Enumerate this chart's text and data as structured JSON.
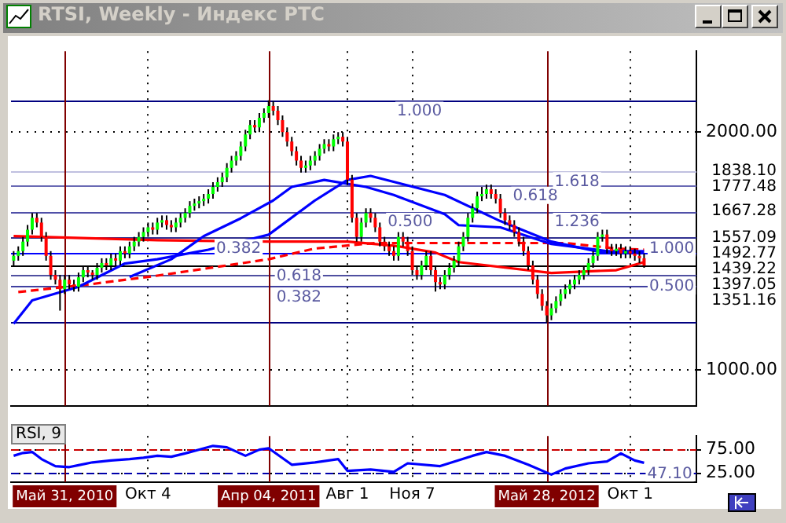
{
  "chart_data": [
    {
      "type": "candlestick",
      "title": "RTSI, Weekly - Индекс РТС",
      "x": [
        "2010-03-15",
        "2010-03-22",
        "2010-03-29",
        "2010-04-05",
        "2010-04-12",
        "2010-04-19",
        "2010-04-26",
        "2010-05-03",
        "2010-05-10",
        "2010-05-17",
        "2010-05-24",
        "2010-05-31",
        "2010-06-07",
        "2010-06-14",
        "2010-06-21",
        "2010-06-28",
        "2010-07-05",
        "2010-07-12",
        "2010-07-19",
        "2010-07-26",
        "2010-08-02",
        "2010-08-09",
        "2010-08-16",
        "2010-08-23",
        "2010-08-30",
        "2010-09-06",
        "2010-09-13",
        "2010-09-20",
        "2010-09-27",
        "2010-10-04",
        "2010-10-11",
        "2010-10-18",
        "2010-10-25",
        "2010-11-01",
        "2010-11-08",
        "2010-11-15",
        "2010-11-22",
        "2010-11-29",
        "2010-12-06",
        "2010-12-13",
        "2010-12-20",
        "2010-12-27",
        "2011-01-03",
        "2011-01-10",
        "2011-01-17",
        "2011-01-24",
        "2011-01-31",
        "2011-02-07",
        "2011-02-14",
        "2011-02-21",
        "2011-02-28",
        "2011-03-07",
        "2011-03-14",
        "2011-03-21",
        "2011-03-28",
        "2011-04-04",
        "2011-04-11",
        "2011-04-18",
        "2011-04-25",
        "2011-05-02",
        "2011-05-09",
        "2011-05-16",
        "2011-05-23",
        "2011-05-30",
        "2011-06-06",
        "2011-06-13",
        "2011-06-20",
        "2011-06-27",
        "2011-07-04",
        "2011-07-11",
        "2011-07-18",
        "2011-07-25",
        "2011-08-01",
        "2011-08-08",
        "2011-08-15",
        "2011-08-22",
        "2011-08-29",
        "2011-09-05",
        "2011-09-12",
        "2011-09-19",
        "2011-09-26",
        "2011-10-03",
        "2011-10-10",
        "2011-10-17",
        "2011-10-24",
        "2011-10-31",
        "2011-11-07",
        "2011-11-14",
        "2011-11-21",
        "2011-11-28",
        "2011-12-05",
        "2011-12-12",
        "2011-12-19",
        "2011-12-26",
        "2012-01-02",
        "2012-01-09",
        "2012-01-16",
        "2012-01-23",
        "2012-01-30",
        "2012-02-06",
        "2012-02-13",
        "2012-02-20",
        "2012-02-27",
        "2012-03-05",
        "2012-03-12",
        "2012-03-19",
        "2012-03-26",
        "2012-04-02",
        "2012-04-09",
        "2012-04-16",
        "2012-04-23",
        "2012-04-30",
        "2012-05-07",
        "2012-05-14",
        "2012-05-21",
        "2012-05-28",
        "2012-06-04",
        "2012-06-11",
        "2012-06-18",
        "2012-06-25",
        "2012-07-02",
        "2012-07-09",
        "2012-07-16",
        "2012-07-23",
        "2012-07-30",
        "2012-08-06",
        "2012-08-13",
        "2012-08-20",
        "2012-08-27",
        "2012-09-03",
        "2012-09-10",
        "2012-09-17",
        "2012-09-24",
        "2012-10-01",
        "2012-10-08",
        "2012-10-15",
        "2012-10-22"
      ],
      "ohlc": [
        [
          1460,
          1500,
          1440,
          1480
        ],
        [
          1480,
          1520,
          1460,
          1500
        ],
        [
          1500,
          1560,
          1480,
          1540
        ],
        [
          1540,
          1610,
          1520,
          1590
        ],
        [
          1590,
          1660,
          1570,
          1640
        ],
        [
          1640,
          1660,
          1600,
          1620
        ],
        [
          1620,
          1640,
          1540,
          1560
        ],
        [
          1560,
          1580,
          1460,
          1480
        ],
        [
          1480,
          1500,
          1380,
          1400
        ],
        [
          1400,
          1420,
          1360,
          1380
        ],
        [
          1380,
          1400,
          1250,
          1340
        ],
        [
          1340,
          1400,
          1320,
          1380
        ],
        [
          1380,
          1400,
          1340,
          1360
        ],
        [
          1360,
          1380,
          1330,
          1350
        ],
        [
          1350,
          1410,
          1330,
          1390
        ],
        [
          1390,
          1440,
          1370,
          1420
        ],
        [
          1420,
          1440,
          1390,
          1410
        ],
        [
          1410,
          1420,
          1380,
          1400
        ],
        [
          1400,
          1450,
          1380,
          1430
        ],
        [
          1430,
          1470,
          1410,
          1450
        ],
        [
          1450,
          1470,
          1420,
          1440
        ],
        [
          1440,
          1490,
          1420,
          1470
        ],
        [
          1470,
          1490,
          1440,
          1460
        ],
        [
          1460,
          1520,
          1440,
          1500
        ],
        [
          1500,
          1520,
          1470,
          1490
        ],
        [
          1490,
          1540,
          1470,
          1520
        ],
        [
          1520,
          1560,
          1500,
          1540
        ],
        [
          1540,
          1580,
          1520,
          1560
        ],
        [
          1560,
          1600,
          1540,
          1580
        ],
        [
          1580,
          1620,
          1560,
          1600
        ],
        [
          1600,
          1620,
          1570,
          1590
        ],
        [
          1590,
          1640,
          1570,
          1620
        ],
        [
          1620,
          1650,
          1600,
          1630
        ],
        [
          1630,
          1650,
          1590,
          1610
        ],
        [
          1610,
          1630,
          1580,
          1600
        ],
        [
          1600,
          1640,
          1580,
          1620
        ],
        [
          1620,
          1660,
          1600,
          1640
        ],
        [
          1640,
          1680,
          1620,
          1660
        ],
        [
          1660,
          1710,
          1640,
          1690
        ],
        [
          1690,
          1720,
          1670,
          1700
        ],
        [
          1700,
          1730,
          1680,
          1710
        ],
        [
          1710,
          1740,
          1690,
          1720
        ],
        [
          1720,
          1760,
          1700,
          1740
        ],
        [
          1740,
          1790,
          1720,
          1770
        ],
        [
          1770,
          1810,
          1750,
          1790
        ],
        [
          1790,
          1830,
          1770,
          1810
        ],
        [
          1810,
          1870,
          1790,
          1850
        ],
        [
          1850,
          1900,
          1830,
          1880
        ],
        [
          1880,
          1920,
          1860,
          1900
        ],
        [
          1900,
          1960,
          1880,
          1940
        ],
        [
          1940,
          2010,
          1920,
          1990
        ],
        [
          1990,
          2050,
          1970,
          2030
        ],
        [
          2030,
          2050,
          2000,
          2020
        ],
        [
          2020,
          2080,
          2000,
          2060
        ],
        [
          2060,
          2100,
          2040,
          2080
        ],
        [
          2080,
          2134,
          2060,
          2110
        ],
        [
          2110,
          2130,
          2070,
          2090
        ],
        [
          2090,
          2110,
          2030,
          2050
        ],
        [
          2050,
          2070,
          1980,
          2000
        ],
        [
          2000,
          2020,
          1940,
          1960
        ],
        [
          1960,
          1980,
          1900,
          1920
        ],
        [
          1920,
          1940,
          1860,
          1880
        ],
        [
          1880,
          1900,
          1830,
          1850
        ],
        [
          1850,
          1880,
          1830,
          1860
        ],
        [
          1860,
          1900,
          1840,
          1880
        ],
        [
          1880,
          1920,
          1860,
          1900
        ],
        [
          1900,
          1950,
          1880,
          1930
        ],
        [
          1930,
          1970,
          1910,
          1950
        ],
        [
          1950,
          1970,
          1920,
          1940
        ],
        [
          1940,
          1990,
          1920,
          1970
        ],
        [
          1970,
          2000,
          1950,
          1980
        ],
        [
          1980,
          2000,
          1940,
          1960
        ],
        [
          1960,
          1980,
          1780,
          1800
        ],
        [
          1800,
          1820,
          1620,
          1640
        ],
        [
          1640,
          1660,
          1540,
          1560
        ],
        [
          1560,
          1640,
          1540,
          1620
        ],
        [
          1620,
          1680,
          1600,
          1660
        ],
        [
          1660,
          1680,
          1620,
          1640
        ],
        [
          1640,
          1660,
          1580,
          1600
        ],
        [
          1600,
          1620,
          1520,
          1540
        ],
        [
          1540,
          1560,
          1500,
          1520
        ],
        [
          1520,
          1540,
          1480,
          1500
        ],
        [
          1500,
          1520,
          1460,
          1480
        ],
        [
          1480,
          1580,
          1460,
          1560
        ],
        [
          1560,
          1580,
          1520,
          1540
        ],
        [
          1540,
          1560,
          1480,
          1500
        ],
        [
          1500,
          1520,
          1400,
          1420
        ],
        [
          1420,
          1440,
          1380,
          1400
        ],
        [
          1400,
          1460,
          1380,
          1440
        ],
        [
          1440,
          1500,
          1420,
          1480
        ],
        [
          1480,
          1500,
          1400,
          1420
        ],
        [
          1420,
          1440,
          1330,
          1370
        ],
        [
          1370,
          1390,
          1340,
          1360
        ],
        [
          1360,
          1420,
          1340,
          1400
        ],
        [
          1400,
          1450,
          1380,
          1430
        ],
        [
          1430,
          1480,
          1410,
          1460
        ],
        [
          1460,
          1540,
          1440,
          1520
        ],
        [
          1520,
          1580,
          1500,
          1560
        ],
        [
          1560,
          1660,
          1540,
          1640
        ],
        [
          1640,
          1700,
          1620,
          1680
        ],
        [
          1680,
          1750,
          1660,
          1730
        ],
        [
          1730,
          1770,
          1710,
          1740
        ],
        [
          1740,
          1780,
          1720,
          1760
        ],
        [
          1760,
          1780,
          1720,
          1740
        ],
        [
          1740,
          1760,
          1700,
          1720
        ],
        [
          1720,
          1740,
          1640,
          1660
        ],
        [
          1660,
          1680,
          1610,
          1630
        ],
        [
          1630,
          1650,
          1590,
          1610
        ],
        [
          1610,
          1630,
          1560,
          1580
        ],
        [
          1580,
          1600,
          1520,
          1540
        ],
        [
          1540,
          1560,
          1480,
          1500
        ],
        [
          1500,
          1520,
          1420,
          1440
        ],
        [
          1440,
          1460,
          1360,
          1380
        ],
        [
          1380,
          1400,
          1300,
          1320
        ],
        [
          1320,
          1340,
          1250,
          1270
        ],
        [
          1270,
          1290,
          1200,
          1230
        ],
        [
          1230,
          1280,
          1210,
          1260
        ],
        [
          1260,
          1310,
          1240,
          1290
        ],
        [
          1290,
          1340,
          1270,
          1320
        ],
        [
          1320,
          1360,
          1300,
          1340
        ],
        [
          1340,
          1380,
          1320,
          1360
        ],
        [
          1360,
          1400,
          1340,
          1380
        ],
        [
          1380,
          1420,
          1360,
          1400
        ],
        [
          1400,
          1440,
          1380,
          1420
        ],
        [
          1420,
          1470,
          1400,
          1450
        ],
        [
          1450,
          1500,
          1430,
          1480
        ],
        [
          1480,
          1580,
          1460,
          1560
        ],
        [
          1560,
          1590,
          1540,
          1570
        ],
        [
          1570,
          1590,
          1490,
          1510
        ],
        [
          1510,
          1530,
          1480,
          1500
        ],
        [
          1500,
          1530,
          1480,
          1510
        ],
        [
          1510,
          1530,
          1470,
          1490
        ],
        [
          1490,
          1520,
          1470,
          1500
        ],
        [
          1500,
          1520,
          1470,
          1490
        ],
        [
          1490,
          1510,
          1460,
          1480
        ],
        [
          1480,
          1500,
          1450,
          1470
        ],
        [
          1470,
          1490,
          1430,
          1439.22
        ]
      ],
      "series": [
        {
          "type": "line",
          "color": "#0000ff",
          "x": [
            "2010-03-15",
            "2010-04-12",
            "2010-06-21",
            "2010-08-30",
            "2010-10-18",
            "2011-01-03",
            "2011-04-04",
            "2011-06-13",
            "2011-08-01",
            "2011-09-05",
            "2011-12-26",
            "2012-03-19",
            "2012-06-04",
            "2012-08-20",
            "2012-10-22"
          ],
          "values": [
            1195,
            1293,
            1350,
            1448,
            1466,
            1506,
            1569,
            1713,
            1799,
            1816,
            1736,
            1626,
            1540,
            1494,
            1492.77
          ]
        },
        {
          "type": "line",
          "color": "#0000ff",
          "x": [
            "2010-09-06",
            "2010-11-08",
            "2010-12-27",
            "2011-02-21",
            "2011-04-11",
            "2011-05-09",
            "2011-06-27",
            "2011-08-29",
            "2011-10-10",
            "2011-12-26",
            "2012-01-16",
            "2012-03-19",
            "2012-06-04",
            "2012-08-27",
            "2012-10-22"
          ],
          "values": [
            1391,
            1466,
            1563,
            1638,
            1713,
            1770,
            1799,
            1770,
            1736,
            1655,
            1609,
            1600,
            1530,
            1500,
            1500
          ]
        },
        {
          "type": "line",
          "color": "#ff0000",
          "x": [
            "2010-03-15",
            "2010-10-18",
            "2011-04-04",
            "2011-08-01",
            "2011-10-10",
            "2011-12-12",
            "2012-01-16",
            "2012-06-04",
            "2012-09-10",
            "2012-10-22"
          ],
          "values": [
            1563,
            1546,
            1540,
            1540,
            1523,
            1494,
            1454,
            1408,
            1420,
            1454
          ]
        },
        {
          "type": "line",
          "color": "#ff0000",
          "line_style": "dashed",
          "x": [
            "2010-03-22",
            "2010-07-12",
            "2010-10-18",
            "2011-01-24",
            "2011-04-04",
            "2011-06-13",
            "2011-09-12",
            "2012-01-16",
            "2012-06-25",
            "2012-09-10",
            "2012-10-22"
          ],
          "values": [
            1328,
            1362,
            1397,
            1437,
            1466,
            1511,
            1534,
            1534,
            1534,
            1511,
            1506
          ]
        }
      ],
      "xlim": [
        "2010-03-11",
        "2013-01-09"
      ],
      "xticks": [
        "2010-10-04",
        "2011-08-01",
        "2011-11-07",
        "2012-10-01"
      ],
      "ylim": [
        850,
        2340
      ],
      "yticks": [
        {
          "value": 1000,
          "label": "1000.00"
        },
        {
          "value": 2000,
          "label": "2000.00"
        }
      ],
      "tick_labels": "y",
      "grid": true,
      "legend": false,
      "ref_lines": [
        {
          "axis": "y",
          "value": 2134.2,
          "color": "#000080"
        },
        {
          "axis": "y",
          "value": 1838.1,
          "label": "1838.10",
          "color": "#c0c0e0"
        },
        {
          "axis": "y",
          "value": 1777.48,
          "label": "1777.48",
          "color": "#6a6ab4"
        },
        {
          "axis": "y",
          "value": 1667.28,
          "label": "1667.28",
          "color": "#5050a8"
        },
        {
          "axis": "y",
          "value": 1557.09,
          "label": "1557.09",
          "color": "#303090"
        },
        {
          "axis": "y",
          "value": 1492.77,
          "label": "1492.77",
          "color": "#0000ff"
        },
        {
          "axis": "y",
          "value": 1439.22,
          "label": "1439.22",
          "color": "#000000"
        },
        {
          "axis": "y",
          "value": 1397.05,
          "label": "1397.05",
          "color": "#5050a0"
        },
        {
          "axis": "y",
          "value": 1351.16,
          "label": "1351.16",
          "color": "#4040a0"
        },
        {
          "axis": "y",
          "value": 1200.3,
          "color": "#000080"
        },
        {
          "axis": "x",
          "value": "2010-05-31",
          "color": "#800000"
        },
        {
          "axis": "x",
          "value": "2011-04-04",
          "color": "#800000"
        },
        {
          "axis": "x",
          "value": "2012-05-28",
          "color": "#800000"
        }
      ],
      "annotations": [
        {
          "text": "1.000",
          "x": "2011-10-10",
          "y": 2134.2
        },
        {
          "text": "0.618",
          "x": "2012-04-02",
          "y": 1777.48
        },
        {
          "text": "0.500",
          "x": "2011-09-26",
          "y": 1667.28
        },
        {
          "text": "0.382",
          "x": "2011-01-10",
          "y": 1557.09
        },
        {
          "text": "1.618",
          "x": "2012-06-04",
          "y": 1838.1
        },
        {
          "text": "1.236",
          "x": "2012-06-04",
          "y": 1667.28
        },
        {
          "text": "1.000",
          "x": "2012-10-25",
          "y": 1557.09
        },
        {
          "text": "0.618",
          "x": "2011-04-11",
          "y": 1439.22
        },
        {
          "text": "0.500",
          "x": "2012-10-25",
          "y": 1397.05
        },
        {
          "text": "0.382",
          "x": "2011-04-11",
          "y": 1351.16
        }
      ]
    },
    {
      "type": "line",
      "title": "RSI, 9",
      "color": "#0000ff",
      "x": [
        "2010-03-15",
        "2010-03-29",
        "2010-04-12",
        "2010-04-26",
        "2010-05-17",
        "2010-06-07",
        "2010-06-21",
        "2010-07-12",
        "2010-08-09",
        "2010-09-06",
        "2010-09-27",
        "2010-10-18",
        "2010-11-08",
        "2010-11-29",
        "2011-01-10",
        "2011-01-31",
        "2011-02-28",
        "2011-03-21",
        "2011-04-04",
        "2011-05-09",
        "2011-06-13",
        "2011-07-18",
        "2011-08-01",
        "2011-09-05",
        "2011-10-10",
        "2011-10-31",
        "2011-12-19",
        "2012-02-06",
        "2012-02-27",
        "2012-03-26",
        "2012-04-30",
        "2012-06-04",
        "2012-06-25",
        "2012-07-30",
        "2012-08-27",
        "2012-09-17",
        "2012-10-08",
        "2012-10-22"
      ],
      "values": [
        62,
        68,
        70,
        55,
        40,
        38,
        42,
        48,
        52,
        55,
        58,
        62,
        60,
        67,
        83,
        80,
        62,
        75,
        78,
        43,
        48,
        55,
        30,
        33,
        28,
        46,
        40,
        62,
        70,
        62,
        43,
        22,
        35,
        46,
        50,
        67,
        52,
        47.1
      ],
      "xlim": [
        "2010-03-11",
        "2013-01-09"
      ],
      "xticks": [
        {
          "value": "2010-10-04",
          "label": "Окт 4"
        },
        {
          "value": "2011-08-01",
          "label": "Авг 1"
        },
        {
          "value": "2011-11-07",
          "label": "Ноя 7"
        },
        {
          "value": "2012-10-01",
          "label": "Окт 1"
        }
      ],
      "ylim": [
        6,
        104
      ],
      "yticks": [
        {
          "value": 25,
          "label": "25.00"
        },
        {
          "value": 75,
          "label": "75.00"
        }
      ],
      "grid": true,
      "legend": false,
      "ref_lines": [
        {
          "axis": "y",
          "value": 75,
          "color": "#cc0000",
          "line_style": "dashed"
        },
        {
          "axis": "y",
          "value": 25,
          "color": "#0000aa",
          "line_style": "dashed"
        },
        {
          "axis": "x",
          "value": "2010-05-31",
          "label": "Май 31, 2010",
          "color": "#800000"
        },
        {
          "axis": "x",
          "value": "2011-04-04",
          "label": "Апр 04, 2011",
          "color": "#800000"
        },
        {
          "axis": "x",
          "value": "2012-05-28",
          "label": "Май 28, 2012",
          "color": "#800000"
        }
      ],
      "annotations": [
        {
          "text": "47.10",
          "x": "2012-10-22",
          "y": 47.1
        }
      ]
    }
  ]
}
